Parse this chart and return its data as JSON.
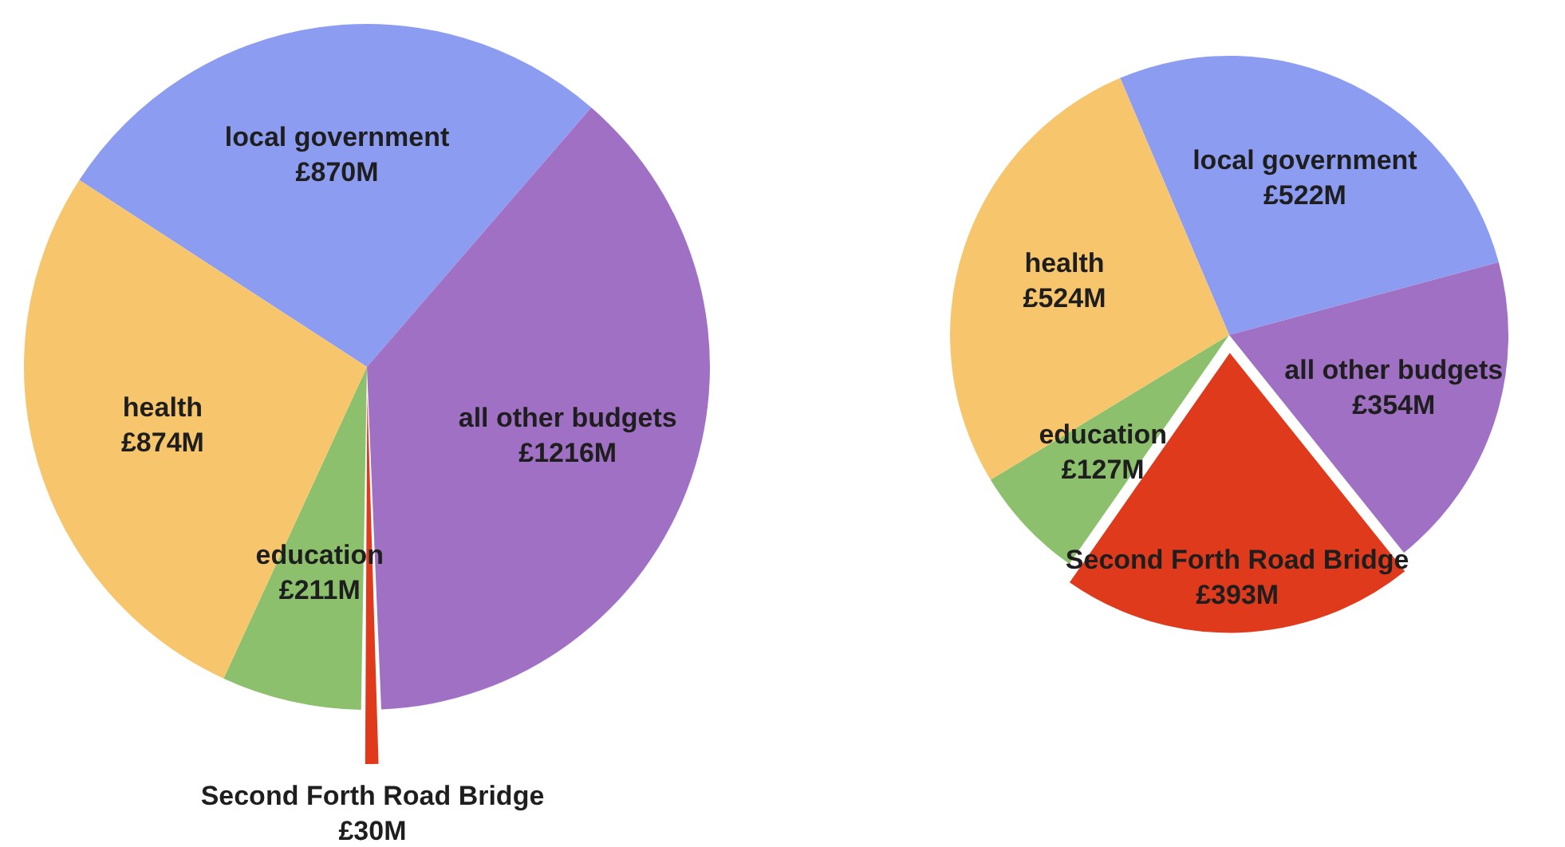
{
  "chart_data": [
    {
      "type": "pie",
      "categories": [
        "local government",
        "all other budgets",
        "Second Forth Road Bridge",
        "education",
        "health"
      ],
      "values": [
        870,
        1216,
        30,
        211,
        874
      ],
      "value_labels": [
        "£870M",
        "£1216M",
        "£30M",
        "£211M",
        "£874M"
      ],
      "colors": [
        "#8c9cf0",
        "#a070c4",
        "#e03a1c",
        "#8cc06c",
        "#f7c66c"
      ],
      "legend": false
    },
    {
      "type": "pie",
      "categories": [
        "local government",
        "all other budgets",
        "Second Forth Road Bridge",
        "education",
        "health"
      ],
      "values": [
        522,
        354,
        393,
        127,
        524
      ],
      "value_labels": [
        "£522M",
        "£354M",
        "£393M",
        "£127M",
        "£524M"
      ],
      "colors": [
        "#8c9cf0",
        "#a070c4",
        "#e03a1c",
        "#8cc06c",
        "#f7c66c"
      ],
      "legend": false
    }
  ]
}
